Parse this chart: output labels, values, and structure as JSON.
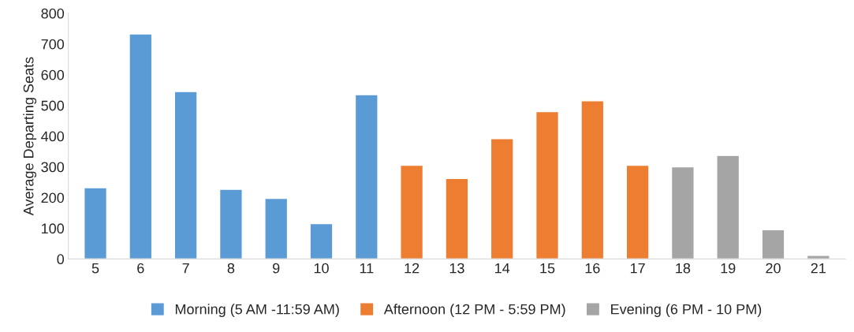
{
  "chart_data": {
    "type": "bar",
    "ylabel": "Average Departing Seats",
    "categories": [
      "5",
      "6",
      "7",
      "8",
      "9",
      "10",
      "11",
      "12",
      "13",
      "14",
      "15",
      "16",
      "17",
      "18",
      "19",
      "20",
      "21"
    ],
    "series": [
      {
        "name": "Morning (5 AM -11:59 AM)",
        "color": "#5b9bd5",
        "values": [
          232,
          733,
          545,
          227,
          197,
          115,
          535,
          null,
          null,
          null,
          null,
          null,
          null,
          null,
          null,
          null,
          null
        ]
      },
      {
        "name": "Afternoon (12 PM - 5:59 PM)",
        "color": "#ed7d31",
        "values": [
          null,
          null,
          null,
          null,
          null,
          null,
          null,
          305,
          262,
          392,
          480,
          515,
          305,
          null,
          null,
          null,
          null
        ]
      },
      {
        "name": "Evening (6 PM - 10 PM)",
        "color": "#a5a5a5",
        "values": [
          null,
          null,
          null,
          null,
          null,
          null,
          null,
          null,
          null,
          null,
          null,
          null,
          null,
          300,
          337,
          95,
          12
        ]
      }
    ],
    "ylim": [
      0,
      800
    ],
    "yticks": [
      0,
      100,
      200,
      300,
      400,
      500,
      600,
      700,
      800
    ],
    "grid": false,
    "legend": "bottom"
  }
}
